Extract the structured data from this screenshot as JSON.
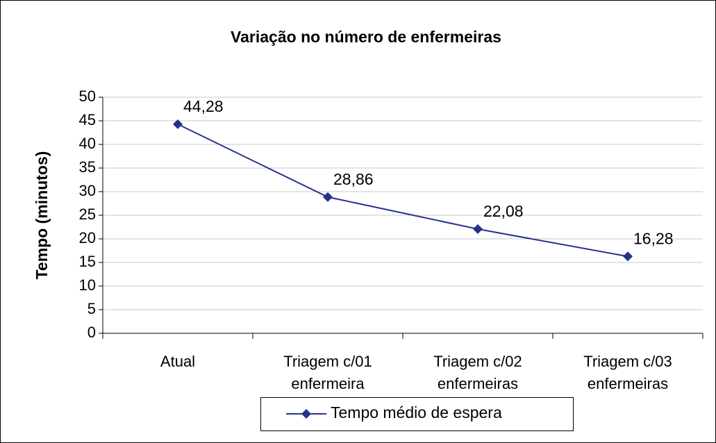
{
  "chart_data": {
    "type": "line",
    "title": "Variação no número de enfermeiras",
    "y_label": "Tempo (minutos)",
    "categories": [
      "Atual",
      "Triagem c/01\nenfermeira",
      "Triagem c/02\nenfermeiras",
      "Triagem c/03\nenfermeiras"
    ],
    "series": [
      {
        "name": "Tempo médio de espera",
        "color": "#26328a",
        "values": [
          44.28,
          28.86,
          22.08,
          16.28
        ],
        "value_labels": [
          "44,28",
          "28,86",
          "22,08",
          "16,28"
        ]
      }
    ],
    "ylim": [
      0,
      50
    ],
    "yticks": [
      0,
      5,
      10,
      15,
      20,
      25,
      30,
      35,
      40,
      45,
      50
    ],
    "grid": true,
    "legend": "bottom"
  }
}
